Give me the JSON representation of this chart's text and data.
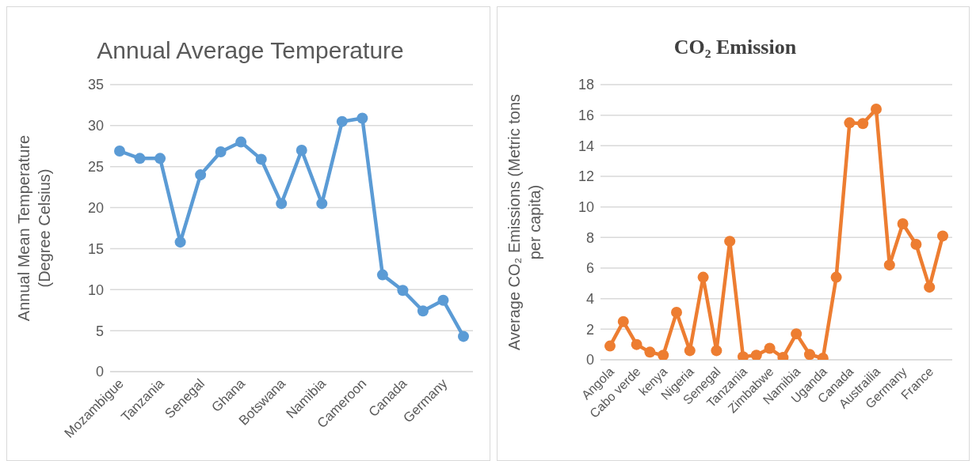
{
  "chart_data": [
    {
      "type": "line",
      "title": "Annual Average Temperature",
      "ylabel": "Annual Mean Temperature (Degree Celsius)",
      "categories": [
        "Mozambigue",
        null,
        "Tanzania",
        null,
        "Senegal",
        null,
        "Ghana",
        null,
        "Botswana",
        null,
        "Namibia",
        null,
        "Cameroon",
        null,
        "Canada",
        null,
        "Germany",
        null
      ],
      "series": [
        {
          "color": "#5b9bd5",
          "values": [
            26.9,
            26,
            26,
            15.8,
            24,
            26.8,
            28,
            25.9,
            20.5,
            27,
            20.5,
            30.5,
            30.9,
            11.8,
            9.9,
            7.4,
            8.7,
            4.3
          ]
        }
      ],
      "ylim": [
        0,
        35
      ],
      "yticks": [
        0,
        5,
        10,
        15,
        20,
        25,
        30,
        35
      ],
      "grid": "y",
      "legend": false,
      "marker": "circle",
      "line_style": "solid"
    },
    {
      "type": "line",
      "title": "CO₂ Emission",
      "ylabel": "Average CO₂ Emissions (Metric tons per capita)",
      "categories": [
        "Angola",
        null,
        "Cabo verde",
        null,
        "kenya",
        null,
        "Nigeria",
        null,
        "Senegal",
        null,
        "Tanzania",
        null,
        "Zimbabwe",
        null,
        "Namibia",
        null,
        "Uganda",
        null,
        "Canada",
        null,
        "Austrailia",
        null,
        "Germany",
        null,
        "France",
        null
      ],
      "series": [
        {
          "color": "#ed7d31",
          "values": [
            0.9,
            2.5,
            1.0,
            0.5,
            0.3,
            3.1,
            0.6,
            5.4,
            0.6,
            7.75,
            0.2,
            0.3,
            0.75,
            0.15,
            1.7,
            0.35,
            0.1,
            5.4,
            15.5,
            15.45,
            16.4,
            6.2,
            8.9,
            7.55,
            4.75,
            8.1
          ]
        }
      ],
      "ylim": [
        0,
        18
      ],
      "yticks": [
        0,
        2,
        4,
        6,
        8,
        10,
        12,
        14,
        16,
        18
      ],
      "grid": "y",
      "legend": false,
      "marker": "circle",
      "line_style": "solid"
    }
  ]
}
